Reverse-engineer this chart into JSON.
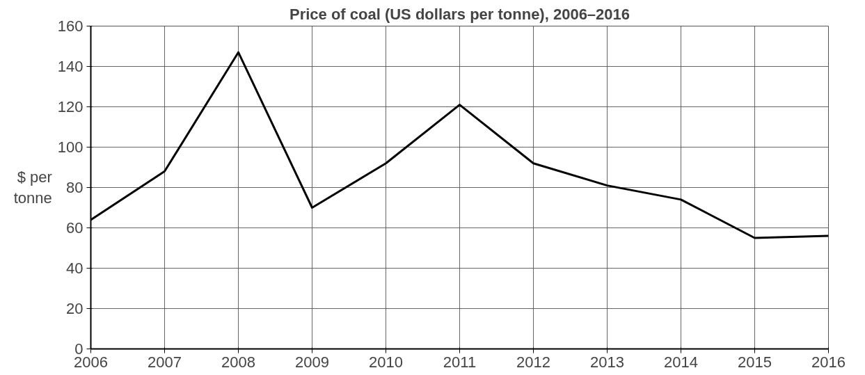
{
  "chart_data": {
    "type": "line",
    "title": "Price of coal (US dollars per tonne), 2006–2016",
    "ylabel": "$ per tonne",
    "x": [
      2006,
      2007,
      2008,
      2009,
      2010,
      2011,
      2012,
      2013,
      2014,
      2015,
      2016
    ],
    "series": [
      {
        "color": "#000000",
        "values": [
          64,
          88,
          147,
          70,
          92,
          121,
          92,
          81,
          74,
          55,
          56
        ]
      }
    ],
    "xlim": [
      2006,
      2016
    ],
    "xticks": [
      2006,
      2007,
      2008,
      2009,
      2010,
      2011,
      2012,
      2013,
      2014,
      2015,
      2016
    ],
    "ylim": [
      0,
      160
    ],
    "yticks": [
      0,
      20,
      40,
      60,
      80,
      100,
      120,
      140,
      160
    ],
    "grid": true,
    "marker": "none",
    "line_style": "solid"
  }
}
